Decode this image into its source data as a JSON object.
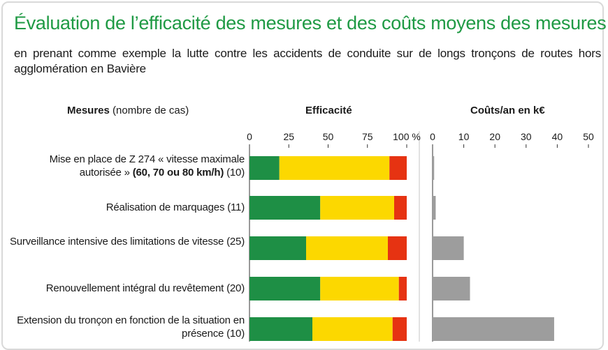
{
  "title": "Évaluation de l’efficacité des mesures et des coûts moyens des mesures",
  "subtitle": "en prenant comme exemple la lutte contre les accidents de conduite sur de longs tronçons de routes hors agglomération en Bavière",
  "headers": {
    "measures_bold": "Mesures",
    "measures_normal": "(nombre de cas)",
    "efficiency": "Efficacité",
    "costs": "Coûts/an en k€"
  },
  "rows": [
    {
      "label_main": "Mise en place de Z 274 « vitesse maximale autorisée »",
      "label_bold": "(60, 70 ou 80 km/h)",
      "count": "(10)"
    },
    {
      "label_main": "Réalisation de marquages",
      "label_bold": "",
      "count": "(11)"
    },
    {
      "label_main": "Surveillance intensive des limitations de vitesse",
      "label_bold": "",
      "count": "(25)"
    },
    {
      "label_main": "Renouvellement intégral du revêtement",
      "label_bold": "",
      "count": "(20)"
    },
    {
      "label_main": "Extension du tronçon en fonction de la situation en présence",
      "label_bold": "",
      "count": "(10)"
    }
  ],
  "chart_data": [
    {
      "type": "bar",
      "orientation": "horizontal",
      "stacked": true,
      "xlabel": "Efficacité",
      "xlim": [
        0,
        100
      ],
      "tick_labels": [
        "0",
        "25",
        "50",
        "75",
        "100 %"
      ],
      "ticks": [
        0,
        25,
        50,
        75,
        100
      ],
      "series": [
        {
          "color": "#1e8f45",
          "values": [
            19,
            45,
            36,
            45,
            40
          ]
        },
        {
          "color": "#fcd800",
          "values": [
            70,
            47,
            52,
            50,
            51
          ]
        },
        {
          "color": "#e63312",
          "values": [
            11,
            8,
            12,
            5,
            9
          ]
        }
      ]
    },
    {
      "type": "bar",
      "orientation": "horizontal",
      "xlabel": "Coûts/an en k€",
      "xlim": [
        0,
        50
      ],
      "tick_labels": [
        "0",
        "10",
        "20",
        "30",
        "40",
        "50"
      ],
      "ticks": [
        0,
        10,
        20,
        30,
        40,
        50
      ],
      "series": [
        {
          "color": "#9d9d9d",
          "values": [
            0.5,
            1,
            10,
            12,
            39
          ]
        }
      ]
    }
  ]
}
